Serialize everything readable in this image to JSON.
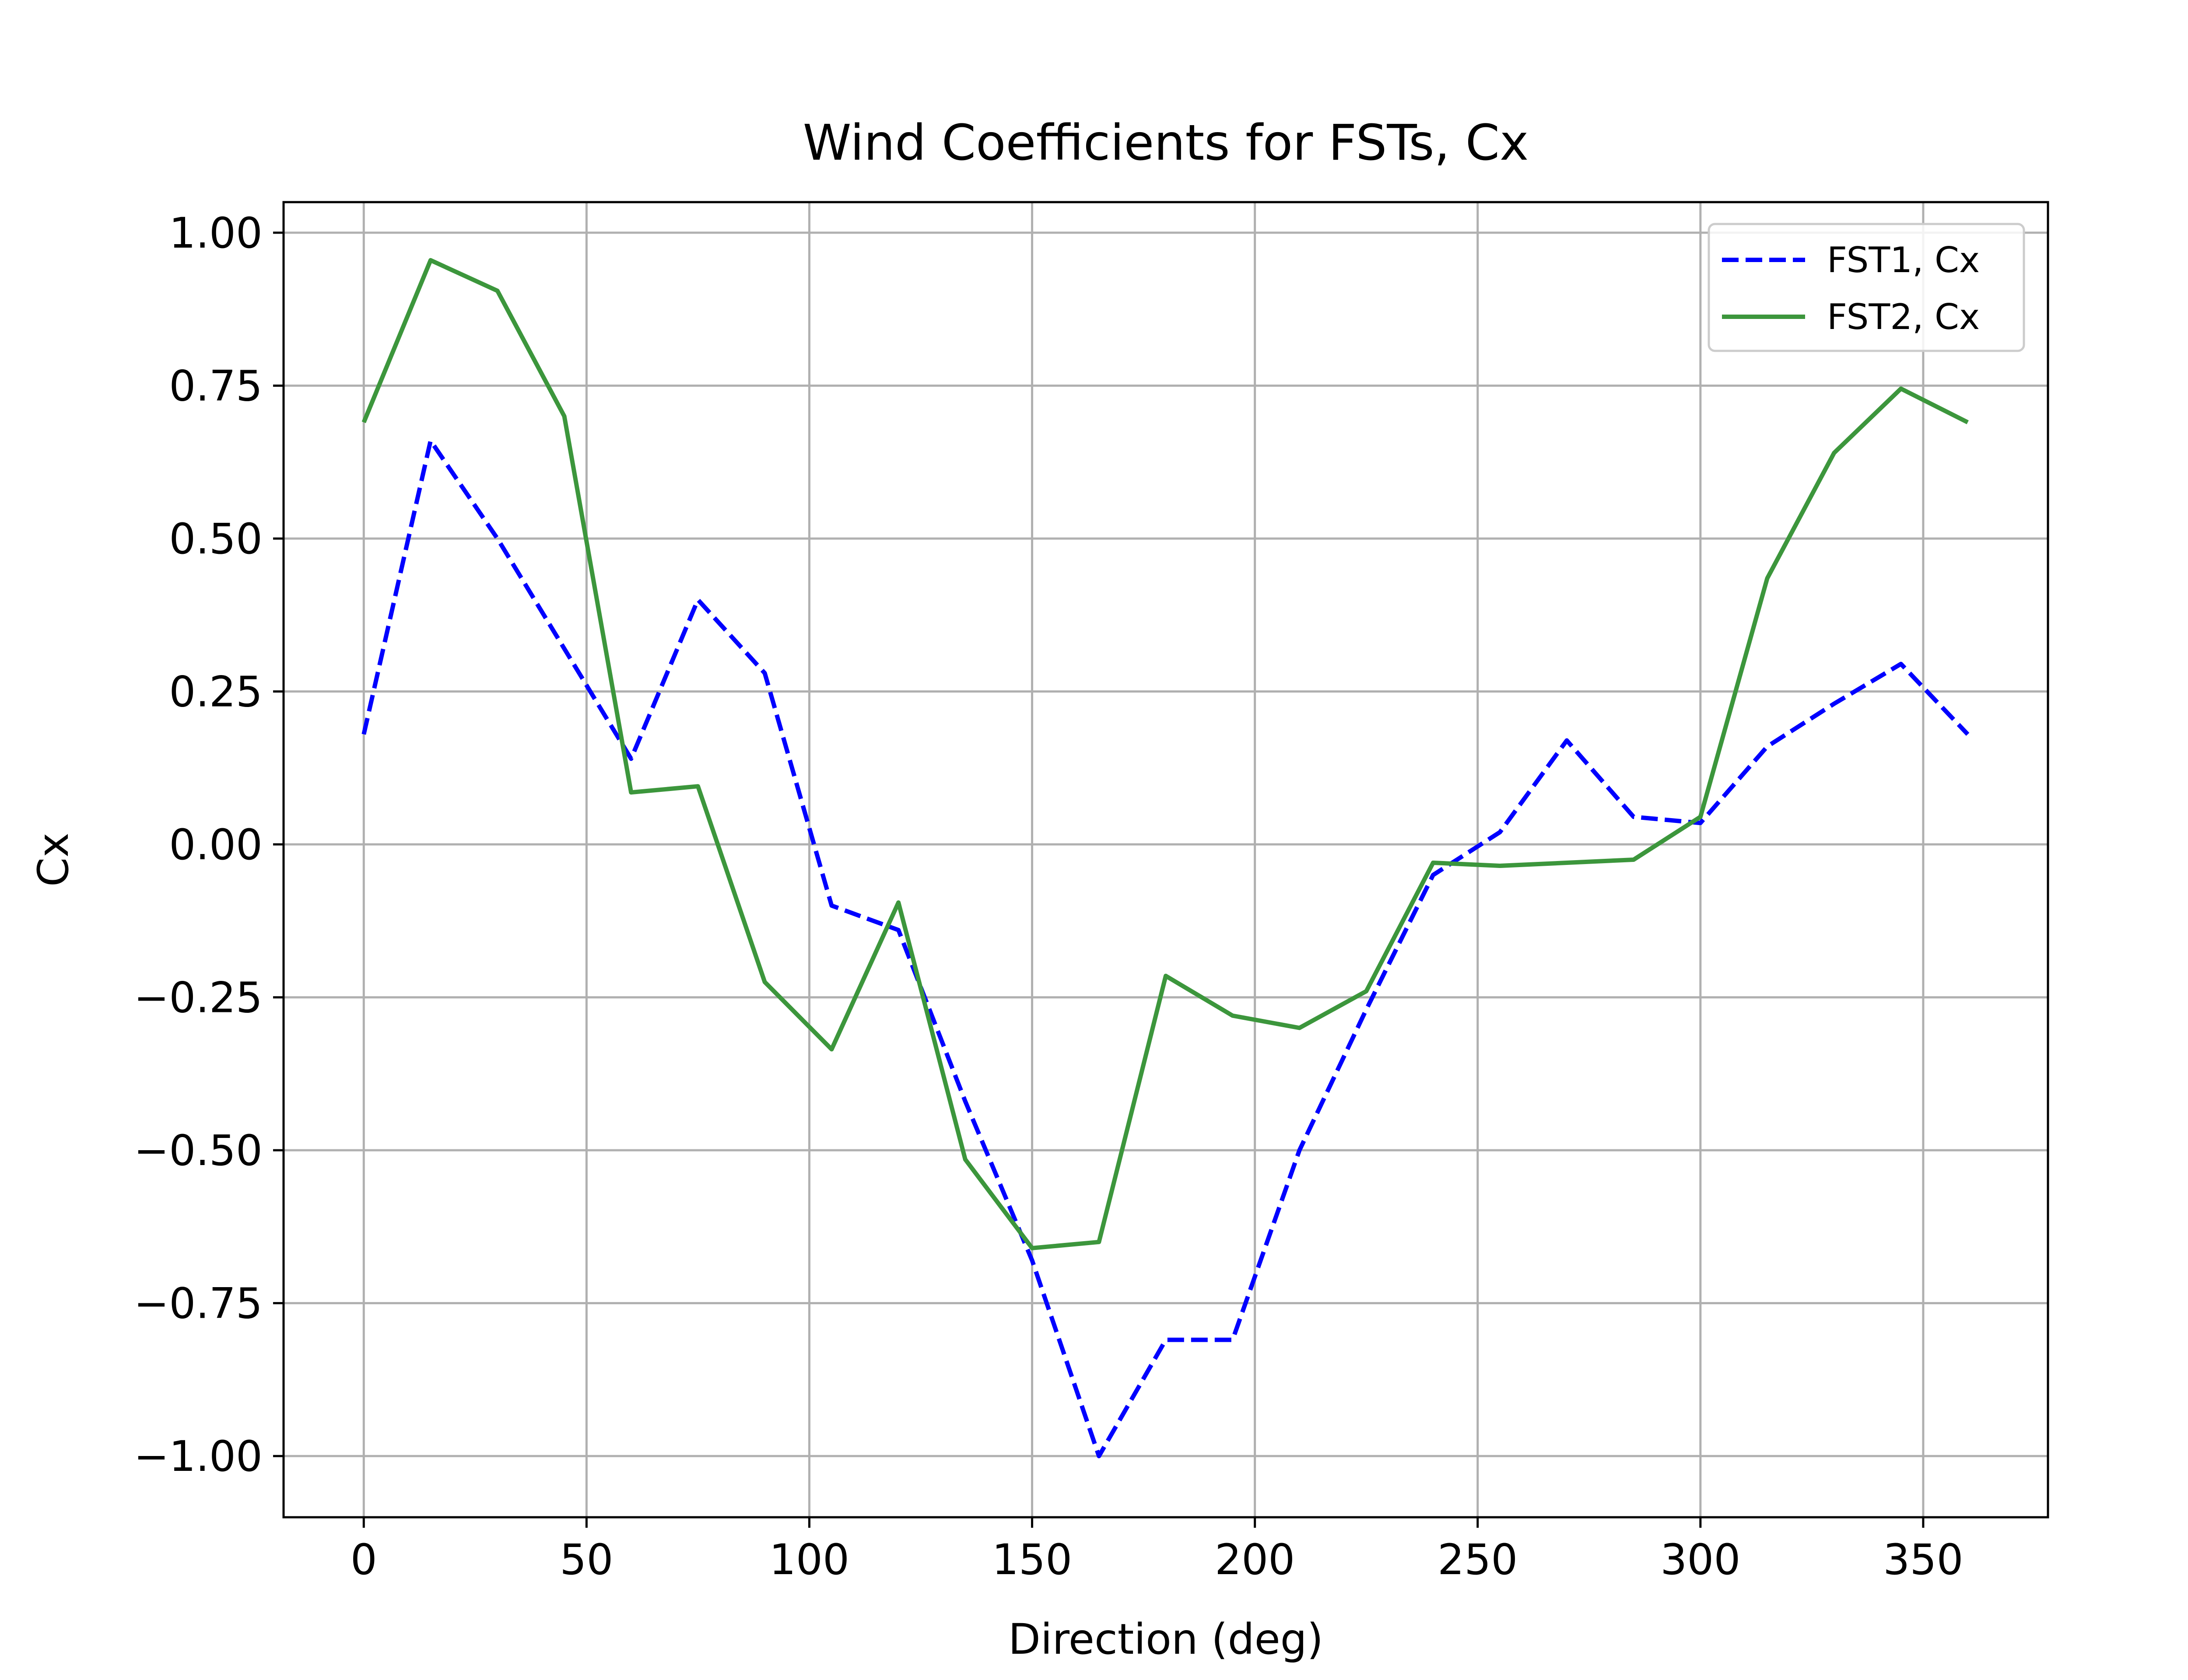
{
  "chart_data": {
    "type": "line",
    "title": "Wind Coefficients for FSTs, Cx",
    "xlabel": "Direction (deg)",
    "ylabel": "Cx",
    "xlim": [
      -18,
      378
    ],
    "ylim": [
      -1.1,
      1.05
    ],
    "xticks": [
      0,
      50,
      100,
      150,
      200,
      250,
      300,
      350
    ],
    "xtick_labels": [
      "0",
      "50",
      "100",
      "150",
      "200",
      "250",
      "300",
      "350"
    ],
    "yticks": [
      1.0,
      0.75,
      0.5,
      0.25,
      0.0,
      -0.25,
      -0.5,
      -0.75,
      -1.0
    ],
    "ytick_labels": [
      "1.00",
      "0.75",
      "0.50",
      "0.25",
      "0.00",
      "−0.25",
      "−0.50",
      "−0.75",
      "−1.00"
    ],
    "grid": true,
    "legend_position": "top-right",
    "x": [
      0,
      15,
      30,
      45,
      60,
      75,
      90,
      105,
      120,
      135,
      150,
      165,
      180,
      195,
      210,
      225,
      240,
      255,
      270,
      285,
      300,
      315,
      330,
      345,
      360
    ],
    "series": [
      {
        "name": "FST1, Cx",
        "color": "#0000ff",
        "style": "dashed",
        "values": [
          0.18,
          0.66,
          0.5,
          0.32,
          0.14,
          0.4,
          0.28,
          -0.1,
          -0.14,
          -0.42,
          -0.68,
          -1.0,
          -0.81,
          -0.81,
          -0.5,
          -0.27,
          -0.05,
          0.02,
          0.17,
          0.045,
          0.035,
          0.16,
          0.23,
          0.295,
          0.18
        ]
      },
      {
        "name": "FST2, Cx",
        "color": "#3c963c",
        "style": "solid",
        "values": [
          0.69,
          0.955,
          0.905,
          0.7,
          0.085,
          0.095,
          -0.225,
          -0.335,
          -0.095,
          -0.515,
          -0.66,
          -0.65,
          -0.215,
          -0.28,
          -0.3,
          -0.24,
          -0.03,
          -0.035,
          -0.03,
          -0.025,
          0.045,
          0.435,
          0.64,
          0.745,
          0.69
        ]
      }
    ]
  }
}
